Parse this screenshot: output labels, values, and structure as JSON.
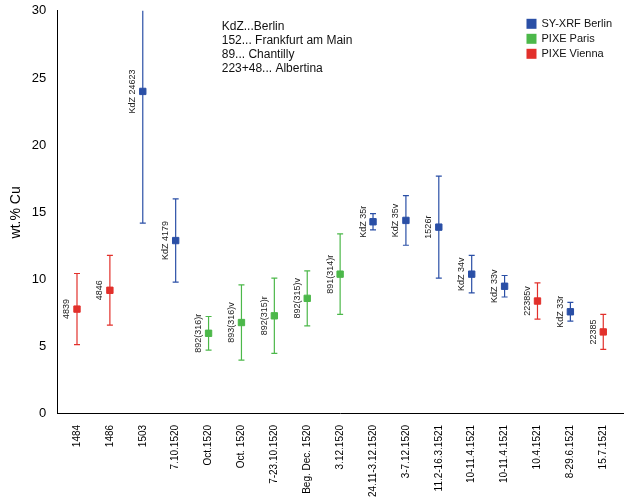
{
  "chart_data": {
    "type": "scatter",
    "y_label": "wt.% Cu",
    "categories": [
      "1484",
      "1486",
      "1503",
      "7.10.1520",
      "Oct.1520",
      "Oct. 1520",
      "7-23.10.1520",
      "Beg. Dec. 1520",
      "3.12.1520",
      "24.11-3.12.1520",
      "3-7.12.1520",
      "11.2-16.3.1521",
      "10-11.4.1521",
      "10-11.4.1521",
      "10.4.1521",
      "8-29.6.1521",
      "15.7.1521"
    ],
    "ylim": [
      0,
      30
    ],
    "yticks": [
      0,
      5,
      10,
      15,
      20,
      25,
      30
    ],
    "grid": false,
    "legend": "upper right",
    "marker": "square",
    "annotations": [
      "KdZ...Berlin",
      "152... Frankfurt am Main",
      "89... Chantilly",
      "223+48... Albertina"
    ],
    "series": [
      {
        "name": "SY-XRF Berlin",
        "color": "#2a4fa6",
        "values": [
          null,
          null,
          24.0,
          12.9,
          null,
          null,
          null,
          null,
          null,
          14.3,
          14.4,
          13.9,
          10.4,
          9.5,
          null,
          7.6,
          null
        ],
        "errors": [
          null,
          null,
          9.8,
          3.1,
          null,
          null,
          null,
          null,
          null,
          0.6,
          1.85,
          3.8,
          1.4,
          0.8,
          null,
          0.7,
          null
        ],
        "point_labels": [
          null,
          null,
          "KdZ 24623",
          "KdZ 4179",
          null,
          null,
          null,
          null,
          null,
          "KdZ 35r",
          "KdZ 35v",
          "1526r",
          "KdZ 34v",
          "KdZ 33v",
          null,
          "KdZ 33r",
          null
        ]
      },
      {
        "name": "PIXE Paris",
        "color": "#4cb84a",
        "values": [
          null,
          null,
          null,
          null,
          6.0,
          6.8,
          7.3,
          8.6,
          10.4,
          null,
          null,
          null,
          null,
          null,
          null,
          null,
          null
        ],
        "errors": [
          null,
          null,
          null,
          null,
          1.25,
          2.8,
          2.8,
          2.05,
          3.0,
          null,
          null,
          null,
          null,
          null,
          null,
          null,
          null
        ],
        "point_labels": [
          null,
          null,
          null,
          null,
          "892(316)r",
          "893(316)v",
          "892(315)r",
          "892(315)v",
          "891(314)r",
          null,
          null,
          null,
          null,
          null,
          null,
          null,
          null
        ]
      },
      {
        "name": "PIXE Vienna",
        "color": "#e2302b",
        "values": [
          7.8,
          9.2,
          null,
          null,
          null,
          null,
          null,
          null,
          null,
          null,
          null,
          null,
          null,
          null,
          8.4,
          null,
          6.1
        ],
        "errors": [
          2.65,
          2.6,
          null,
          null,
          null,
          null,
          null,
          null,
          null,
          null,
          null,
          null,
          null,
          null,
          1.35,
          null,
          1.3
        ],
        "point_labels": [
          "4839",
          "4846",
          null,
          null,
          null,
          null,
          null,
          null,
          null,
          null,
          null,
          null,
          null,
          null,
          "22385v",
          null,
          "22385"
        ]
      }
    ]
  }
}
